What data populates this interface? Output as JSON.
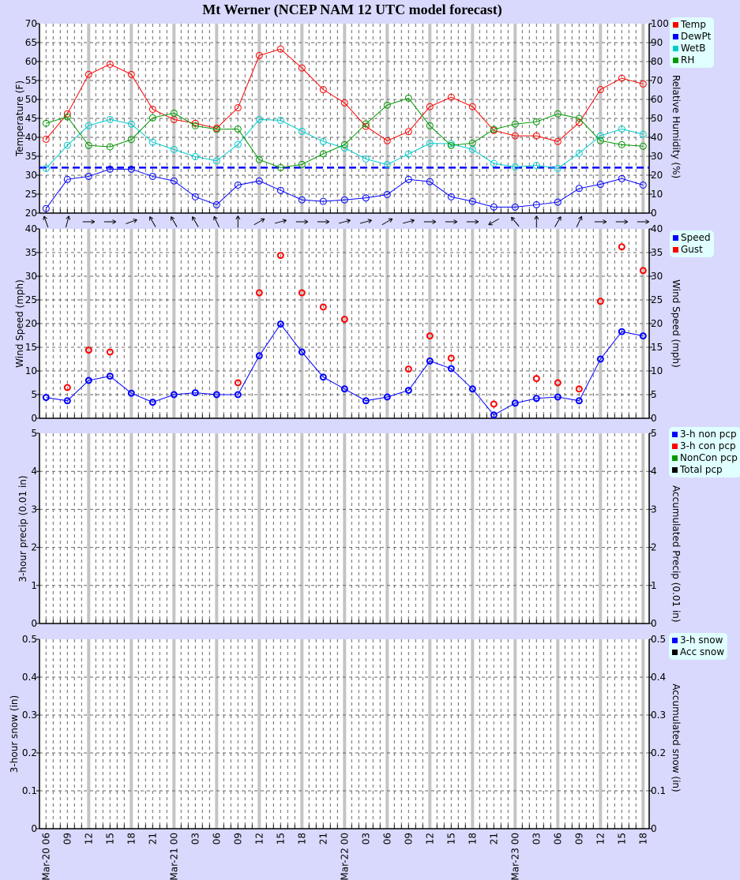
{
  "title": "Mt Werner (NCEP NAM 12 UTC model forecast)",
  "x_labels": [
    "Mar-20 06",
    "09",
    "12",
    "15",
    "18",
    "21",
    "Mar-21 00",
    "03",
    "06",
    "09",
    "12",
    "15",
    "18",
    "21",
    "Mar-22 00",
    "03",
    "06",
    "09",
    "12",
    "15",
    "18",
    "21",
    "Mar-23 00",
    "03",
    "06",
    "09",
    "12",
    "15",
    "18"
  ],
  "chart_data": [
    {
      "type": "line",
      "ylabel": "Temperature (F)",
      "ylabel_right": "Relative Humidity (%)",
      "ylim": [
        20,
        70
      ],
      "yticks": [
        20,
        25,
        30,
        35,
        40,
        45,
        50,
        55,
        60,
        65,
        70
      ],
      "ylim_right": [
        0,
        100
      ],
      "yticks_right": [
        0,
        10,
        20,
        30,
        40,
        50,
        60,
        70,
        80,
        90,
        100
      ],
      "grid": true,
      "legend": "right",
      "freezing_line": 32,
      "freezing_line_color": "#0000ff",
      "series": [
        {
          "name": "Temp",
          "color": "#ff0000",
          "axis": "left",
          "values": [
            39.5,
            46.2,
            56.6,
            59.3,
            56.6,
            47.4,
            44.7,
            43.7,
            42.4,
            47.8,
            61.6,
            63.3,
            58.3,
            52.6,
            49.1,
            42.9,
            39.1,
            41.5,
            48.1,
            50.6,
            48.1,
            41.8,
            40.4,
            40.4,
            38.9,
            43.9,
            52.6,
            55.6,
            54.1
          ]
        },
        {
          "name": "DewPt",
          "color": "#0000ff",
          "axis": "left",
          "values": [
            21.2,
            28.9,
            29.7,
            31.6,
            31.6,
            29.7,
            28.5,
            24.3,
            22.2,
            27.4,
            28.5,
            26.0,
            23.5,
            23.1,
            23.5,
            24.0,
            24.9,
            28.9,
            28.3,
            24.3,
            23.1,
            21.6,
            21.6,
            22.2,
            22.9,
            26.5,
            27.6,
            29.1,
            27.4
          ]
        },
        {
          "name": "WetB",
          "color": "#00cccc",
          "axis": "left",
          "values": [
            31.8,
            37.9,
            43.1,
            44.7,
            43.5,
            38.7,
            36.8,
            34.9,
            33.8,
            38.1,
            44.7,
            44.5,
            41.6,
            38.9,
            37.2,
            34.3,
            32.8,
            35.6,
            38.4,
            38.3,
            36.8,
            33.1,
            32.2,
            32.6,
            31.8,
            35.8,
            40.4,
            42.2,
            40.8
          ]
        },
        {
          "name": "RH",
          "color": "#009900",
          "axis": "right",
          "values": [
            47.4,
            50.8,
            35.7,
            35.0,
            38.8,
            50.3,
            52.8,
            46.1,
            44.2,
            44.4,
            28.2,
            24.0,
            25.7,
            31.3,
            36.1,
            47.1,
            57.0,
            60.7,
            46.1,
            35.7,
            37.0,
            44.2,
            47.0,
            48.2,
            52.4,
            50.0,
            38.2,
            36.1,
            35.3
          ]
        }
      ]
    },
    {
      "type": "scatter",
      "ylabel": "Wind Speed (mph)",
      "ylabel_right": "Wind Speed (mph)",
      "ylim": [
        0,
        40
      ],
      "yticks": [
        0,
        5,
        10,
        15,
        20,
        25,
        30,
        35,
        40
      ],
      "grid": true,
      "legend": "right",
      "wind_direction_arrow_bearing_deg": [
        340,
        15,
        90,
        90,
        70,
        330,
        330,
        330,
        335,
        0,
        60,
        75,
        90,
        90,
        75,
        75,
        60,
        75,
        90,
        90,
        90,
        240,
        320,
        0,
        30,
        25,
        90,
        90,
        90
      ],
      "series": [
        {
          "name": "Speed",
          "color": "#0000ff",
          "connected": true,
          "values": [
            4.4,
            3.7,
            8.0,
            8.9,
            5.3,
            3.4,
            5.0,
            5.4,
            5.0,
            5.0,
            13.2,
            19.9,
            14.0,
            8.7,
            6.2,
            3.7,
            4.5,
            5.9,
            12.1,
            10.5,
            6.2,
            0.7,
            3.2,
            4.2,
            4.5,
            3.7,
            12.5,
            18.3,
            17.4
          ]
        },
        {
          "name": "Gust",
          "color": "#ff0000",
          "connected": false,
          "values": [
            null,
            6.5,
            14.4,
            14.0,
            null,
            null,
            null,
            null,
            null,
            7.5,
            26.5,
            34.4,
            26.5,
            23.5,
            20.9,
            null,
            null,
            10.4,
            17.4,
            12.7,
            null,
            3.0,
            null,
            8.4,
            7.5,
            6.2,
            24.7,
            36.2,
            31.2
          ]
        }
      ]
    },
    {
      "type": "bar",
      "ylabel": "3-hour precip (0.01 in)",
      "ylabel_right": "Accumulated Precip (0.01 in)",
      "ylim": [
        0,
        5
      ],
      "yticks": [
        0,
        1,
        2,
        3,
        4,
        5
      ],
      "grid": true,
      "legend": "right",
      "series": [
        {
          "name": "3-h non pcp",
          "color": "#0000ff",
          "values": []
        },
        {
          "name": "3-h con pcp",
          "color": "#ff0000",
          "values": []
        },
        {
          "name": "NonCon pcp",
          "color": "#009900",
          "values": []
        },
        {
          "name": "Total pcp",
          "color": "#000000",
          "values": []
        }
      ]
    },
    {
      "type": "bar",
      "ylabel": "3-hour snow (in)",
      "ylabel_right": "Accumulated snow (in)",
      "ylim": [
        0,
        0.5
      ],
      "yticks": [
        0,
        0.1,
        0.2,
        0.3,
        0.4,
        0.5
      ],
      "grid": true,
      "legend": "right",
      "series": [
        {
          "name": "3-h snow",
          "color": "#0000ff",
          "values": []
        },
        {
          "name": "Acc snow",
          "color": "#000000",
          "values": []
        }
      ]
    }
  ]
}
